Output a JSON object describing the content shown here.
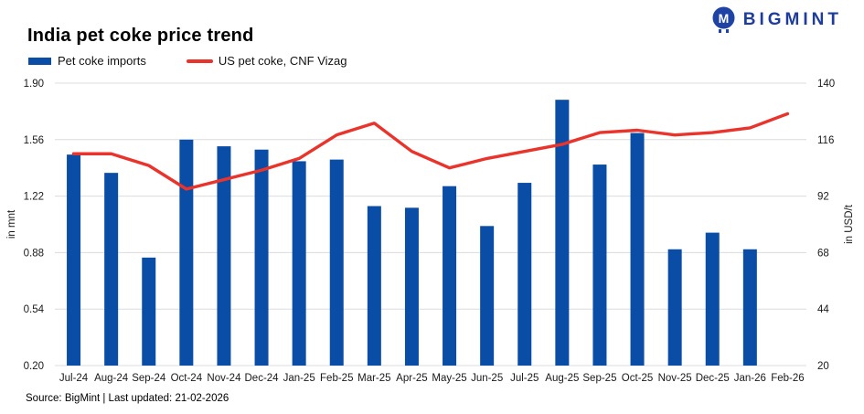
{
  "header": {
    "title": "India pet coke price trend",
    "brand": "BIGMINT",
    "brand_icon_letter": "M",
    "brand_color": "#1e3c9b"
  },
  "legend": {
    "items": [
      {
        "label": "Pet coke imports",
        "type": "bar",
        "color": "#0a4da6"
      },
      {
        "label": "US pet coke, CNF Vizag",
        "type": "line",
        "color": "#e9332b"
      }
    ]
  },
  "footer": {
    "source": "Source: BigMint | Last updated: 21-02-2026"
  },
  "colors": {
    "bar": "#0a4da6",
    "line": "#e9332b",
    "grid": "#dcdcdc",
    "tick_text": "#1a1a1a"
  },
  "chart_data": {
    "type": "bar",
    "title": "India pet coke price trend",
    "categories": [
      "Jul-24",
      "Aug-24",
      "Sep-24",
      "Oct-24",
      "Nov-24",
      "Dec-24",
      "Jan-25",
      "Feb-25",
      "Mar-25",
      "Apr-25",
      "May-25",
      "Jun-25",
      "Jul-25",
      "Aug-25",
      "Sep-25",
      "Oct-25",
      "Nov-25",
      "Dec-25",
      "Jan-26",
      "Feb-26"
    ],
    "series": [
      {
        "name": "Pet coke imports",
        "type": "bar",
        "axis": "left",
        "unit": "mnt",
        "color": "#0a4da6",
        "values": [
          1.47,
          1.36,
          0.85,
          1.56,
          1.52,
          1.5,
          1.43,
          1.44,
          1.16,
          1.15,
          1.28,
          1.04,
          1.3,
          1.8,
          1.41,
          1.6,
          0.9,
          1.0,
          0.9,
          null
        ]
      },
      {
        "name": "US pet coke, CNF Vizag",
        "type": "line",
        "axis": "right",
        "unit": "USD/t",
        "color": "#e9332b",
        "values": [
          110,
          110,
          105,
          95,
          99,
          103,
          108,
          118,
          123,
          111,
          104,
          108,
          111,
          114,
          119,
          120,
          118,
          119,
          121,
          127
        ]
      }
    ],
    "left_axis": {
      "label": "in mnt",
      "min": 0.2,
      "max": 1.9,
      "tick_labels": [
        "1.90",
        "1.56",
        "1.22",
        "0.88",
        "0.54",
        "0.20"
      ],
      "tick_values": [
        1.9,
        1.56,
        1.22,
        0.88,
        0.54,
        0.2
      ]
    },
    "right_axis": {
      "label": "in USD/t",
      "min": 20,
      "max": 140,
      "tick_labels": [
        "140",
        "116",
        "92",
        "68",
        "44",
        "20"
      ],
      "tick_values": [
        140,
        116,
        92,
        68,
        44,
        20
      ]
    },
    "grid": true,
    "legend_position": "top-left"
  }
}
